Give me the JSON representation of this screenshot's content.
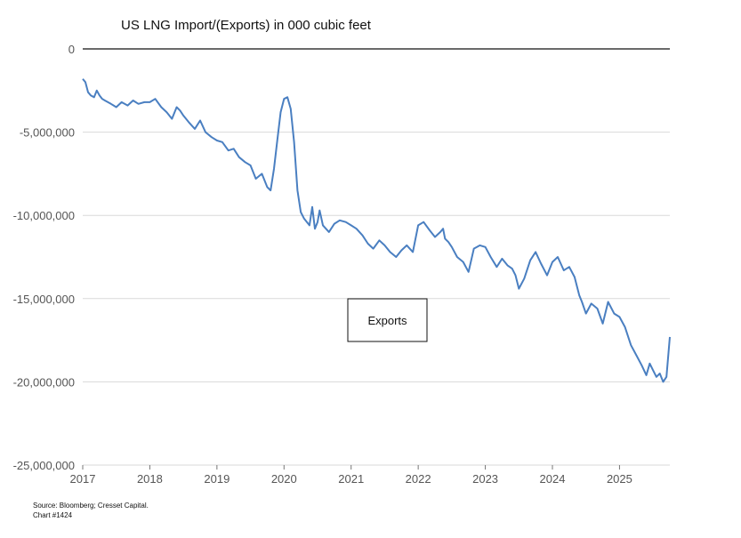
{
  "chart_data": {
    "type": "line",
    "title": "US LNG Import/(Exports) in 000 cubic feet",
    "xlabel": "",
    "ylabel": "",
    "xlim": [
      2017.0,
      2025.75
    ],
    "ylim": [
      -25000000,
      0
    ],
    "x_ticks": [
      "2017",
      "2018",
      "2019",
      "2020",
      "2021",
      "2022",
      "2023",
      "2024",
      "2025"
    ],
    "y_ticks": [
      "0",
      "-5,000,000",
      "-10,000,000",
      "-15,000,000",
      "-20,000,000",
      "-25,000,000"
    ],
    "grid": true,
    "annotation": "Exports",
    "source": "Source: Bloomberg; Cresset Capital.",
    "chart_number": "Chart #1424",
    "line_color": "#4a7fc1",
    "series": [
      {
        "name": "",
        "x": [
          2017.0,
          2017.04,
          2017.08,
          2017.12,
          2017.17,
          2017.21,
          2017.25,
          2017.29,
          2017.33,
          2017.42,
          2017.5,
          2017.58,
          2017.67,
          2017.75,
          2017.83,
          2017.92,
          2018.0,
          2018.08,
          2018.17,
          2018.25,
          2018.33,
          2018.4,
          2018.45,
          2018.5,
          2018.58,
          2018.67,
          2018.75,
          2018.83,
          2018.92,
          2019.0,
          2019.08,
          2019.17,
          2019.25,
          2019.33,
          2019.42,
          2019.5,
          2019.58,
          2019.67,
          2019.75,
          2019.8,
          2019.85,
          2019.9,
          2019.95,
          2020.0,
          2020.05,
          2020.1,
          2020.15,
          2020.2,
          2020.25,
          2020.3,
          2020.38,
          2020.42,
          2020.46,
          2020.5,
          2020.53,
          2020.58,
          2020.67,
          2020.75,
          2020.83,
          2020.92,
          2021.0,
          2021.08,
          2021.17,
          2021.25,
          2021.33,
          2021.42,
          2021.5,
          2021.58,
          2021.67,
          2021.75,
          2021.83,
          2021.92,
          2022.0,
          2022.08,
          2022.17,
          2022.25,
          2022.33,
          2022.37,
          2022.4,
          2022.45,
          2022.5,
          2022.58,
          2022.67,
          2022.75,
          2022.83,
          2022.92,
          2023.0,
          2023.08,
          2023.17,
          2023.25,
          2023.33,
          2023.4,
          2023.45,
          2023.5,
          2023.58,
          2023.67,
          2023.75,
          2023.83,
          2023.92,
          2024.0,
          2024.08,
          2024.17,
          2024.25,
          2024.33,
          2024.4,
          2024.44,
          2024.5,
          2024.58,
          2024.67,
          2024.75,
          2024.83,
          2024.92,
          2025.0,
          2025.08,
          2025.17,
          2025.25,
          2025.33,
          2025.4,
          2025.45,
          2025.5,
          2025.55,
          2025.6,
          2025.65,
          2025.7,
          2025.75
        ],
        "y": [
          -1800000,
          -2000000,
          -2600000,
          -2800000,
          -2900000,
          -2500000,
          -2800000,
          -3000000,
          -3100000,
          -3300000,
          -3500000,
          -3200000,
          -3400000,
          -3100000,
          -3300000,
          -3200000,
          -3200000,
          -3000000,
          -3500000,
          -3800000,
          -4200000,
          -3500000,
          -3700000,
          -4000000,
          -4400000,
          -4800000,
          -4300000,
          -5000000,
          -5300000,
          -5500000,
          -5600000,
          -6100000,
          -6000000,
          -6500000,
          -6800000,
          -7000000,
          -7800000,
          -7500000,
          -8300000,
          -8500000,
          -7200000,
          -5500000,
          -3800000,
          -3000000,
          -2900000,
          -3600000,
          -5600000,
          -8500000,
          -9800000,
          -10200000,
          -10600000,
          -9500000,
          -10800000,
          -10400000,
          -9700000,
          -10600000,
          -11000000,
          -10500000,
          -10300000,
          -10400000,
          -10600000,
          -10800000,
          -11200000,
          -11700000,
          -12000000,
          -11500000,
          -11800000,
          -12200000,
          -12500000,
          -12100000,
          -11800000,
          -12200000,
          -10600000,
          -10400000,
          -10900000,
          -11300000,
          -11000000,
          -10800000,
          -11400000,
          -11600000,
          -11900000,
          -12500000,
          -12800000,
          -13400000,
          -12000000,
          -11800000,
          -11900000,
          -12500000,
          -13100000,
          -12600000,
          -13000000,
          -13200000,
          -13600000,
          -14400000,
          -13800000,
          -12700000,
          -12200000,
          -12900000,
          -13600000,
          -12800000,
          -12500000,
          -13300000,
          -13100000,
          -13700000,
          -14800000,
          -15200000,
          -15900000,
          -15300000,
          -15600000,
          -16500000,
          -15200000,
          -15900000,
          -16100000,
          -16700000,
          -17800000,
          -18400000,
          -19000000,
          -19600000,
          -18900000,
          -19300000,
          -19700000,
          -19500000,
          -20000000,
          -19700000,
          -17300000
        ]
      }
    ]
  }
}
